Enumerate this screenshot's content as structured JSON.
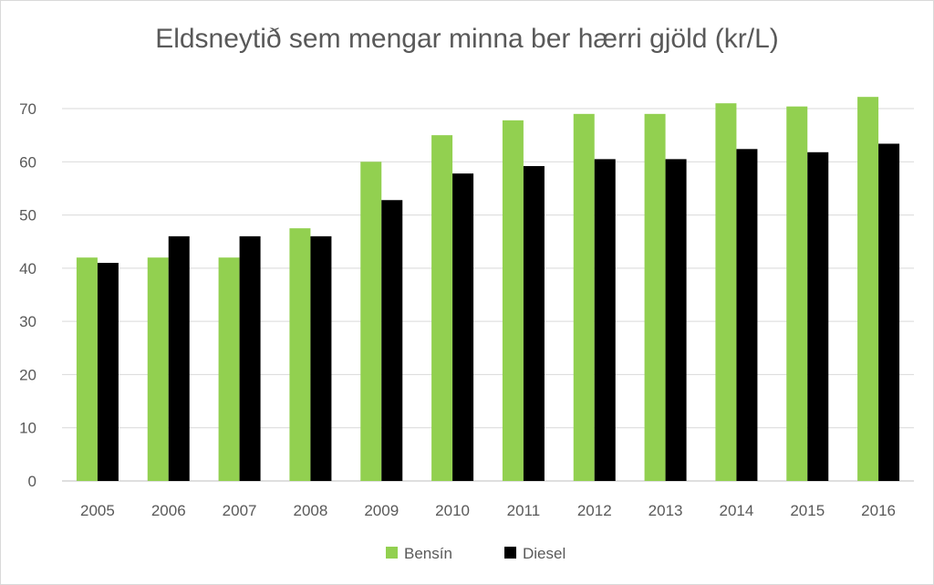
{
  "chart_data": {
    "type": "bar",
    "title": "Eldsneytið sem mengar minna ber hærri gjöld (kr/L)",
    "xlabel": "",
    "ylabel": "",
    "categories": [
      "2005",
      "2006",
      "2007",
      "2008",
      "2009",
      "2010",
      "2011",
      "2012",
      "2013",
      "2014",
      "2015",
      "2016"
    ],
    "series": [
      {
        "name": "Bensín",
        "color": "#92d050",
        "values": [
          42,
          42,
          42,
          47.5,
          60,
          65,
          67.8,
          69,
          69,
          71,
          70.4,
          72.2
        ]
      },
      {
        "name": "Diesel",
        "color": "#000000",
        "values": [
          41,
          46,
          46,
          46,
          52.8,
          57.8,
          59.2,
          60.5,
          60.5,
          62.4,
          61.8,
          63.4
        ]
      }
    ],
    "ylim": [
      0,
      70
    ],
    "yticks": [
      0,
      10,
      20,
      30,
      40,
      50,
      60,
      70
    ],
    "grid": true,
    "legend_position": "bottom"
  }
}
